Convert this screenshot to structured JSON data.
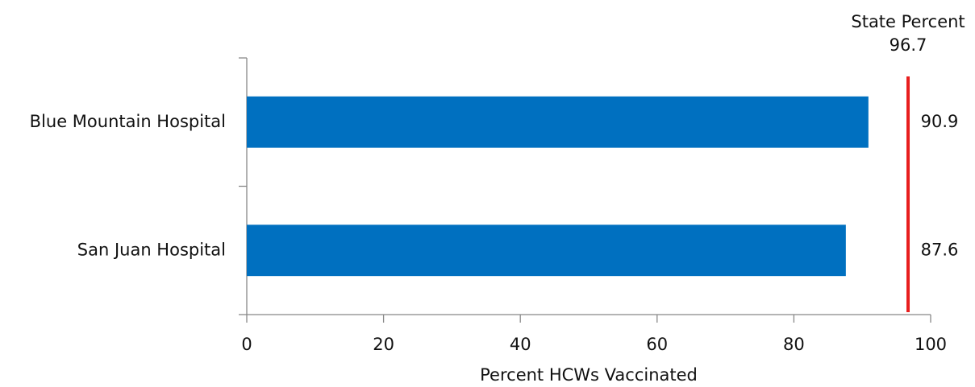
{
  "chart_data": {
    "type": "barh",
    "categories": [
      "Blue Mountain Hospital",
      "San Juan Hospital"
    ],
    "values": [
      90.9,
      87.6
    ],
    "color": "#0070c0",
    "xlabel": "Percent HCWs Vaccinated",
    "xlim": [
      0,
      100
    ],
    "xticks": [
      0,
      20,
      40,
      60,
      80,
      100
    ],
    "grid": false,
    "reference_line": {
      "label": "State Percent",
      "value": 96.7,
      "color": "#e81e1e"
    }
  }
}
